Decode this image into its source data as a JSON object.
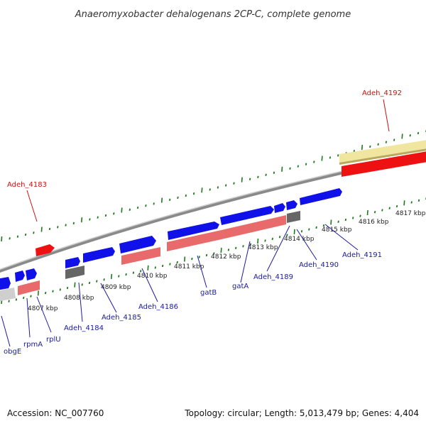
{
  "title": "Anaeromyxobacter dehalogenans 2CP-C, complete genome",
  "footer": {
    "accession": "Accession: NC_007760",
    "summary": "Topology: circular; Length: 5,013,479 bp; Genes: 4,404"
  },
  "kbp_ticks": [
    "4807 kbp",
    "4808 kbp",
    "4809 kbp",
    "4810 kbp",
    "4811 kbp",
    "4812 kbp",
    "4813 kbp",
    "4814 kbp",
    "4815 kbp",
    "4816 kbp",
    "4817 kbp"
  ],
  "gene_labels": {
    "adeh_4183": "Adeh_4183",
    "adeh_4192": "Adeh_4192",
    "obgE": "obgE",
    "rpmA": "rpmA",
    "rplU": "rplU",
    "adeh_4184": "Adeh_4184",
    "adeh_4185": "Adeh_4185",
    "adeh_4186": "Adeh_4186",
    "gatB": "gatB",
    "gatA": "gatA",
    "adeh_4189": "Adeh_4189",
    "adeh_4190": "Adeh_4190",
    "adeh_4191": "Adeh_4191"
  },
  "colors": {
    "cds": "#1010e8",
    "rna": "#e86a6a",
    "highlight": "#ee1111",
    "pseudo": "#777777",
    "tick": "#1f7a1f",
    "backbone": "#8a8a8a",
    "repeat": "#f0e6a0",
    "label_blue": "#1a1aa0",
    "label_red": "#cc1111"
  }
}
